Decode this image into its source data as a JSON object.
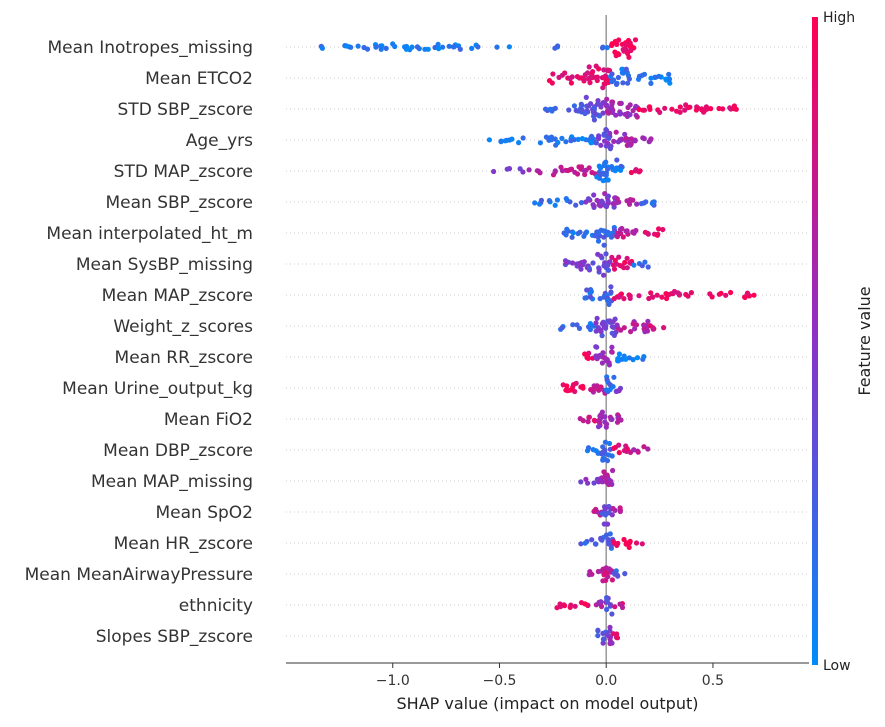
{
  "chart_data": {
    "type": "scatter",
    "subtype": "shap-beeswarm-summary",
    "xlabel": "SHAP value (impact on model output)",
    "xlim": [
      -1.5,
      0.95
    ],
    "x_ticks": [
      -1.0,
      -0.5,
      0.0,
      0.5
    ],
    "x_tick_labels": [
      "−1.0",
      "−0.5",
      "0.0",
      "0.5"
    ],
    "colorbar": {
      "label": "Feature value",
      "high_label": "High",
      "low_label": "Low",
      "high_color": "#ff0052",
      "mid_color": "#8a32c8",
      "low_color": "#008bfa"
    },
    "features": [
      {
        "name": "Mean Inotropes_missing",
        "min": -1.4,
        "max": 0.15,
        "bands": [
          [
            -1.4,
            -1.3,
            0.1,
            0.03
          ],
          [
            -1.3,
            -0.43,
            0.1,
            0.18
          ],
          [
            -0.25,
            -0.15,
            0.1,
            0.06
          ],
          [
            -0.03,
            0.02,
            0.2,
            0.12
          ],
          [
            0.02,
            0.14,
            0.95,
            0.9
          ]
        ]
      },
      {
        "name": "Mean ETCO2",
        "min": -0.27,
        "max": 0.3,
        "bands": [
          [
            -0.27,
            -0.1,
            0.9,
            0.35
          ],
          [
            -0.1,
            0.02,
            0.85,
            1.0
          ],
          [
            0.02,
            0.12,
            0.15,
            0.7
          ],
          [
            0.12,
            0.3,
            0.08,
            0.35
          ]
        ]
      },
      {
        "name": "STD SBP_zscore",
        "min": -0.3,
        "max": 0.63,
        "bands": [
          [
            -0.3,
            -0.12,
            0.25,
            0.2
          ],
          [
            -0.12,
            0.0,
            0.35,
            0.95
          ],
          [
            0.0,
            0.15,
            0.6,
            0.85
          ],
          [
            0.15,
            0.63,
            0.9,
            0.28
          ]
        ]
      },
      {
        "name": "Age_yrs",
        "min": -0.57,
        "max": 0.25,
        "bands": [
          [
            -0.57,
            -0.3,
            0.1,
            0.12
          ],
          [
            -0.3,
            -0.05,
            0.12,
            0.35
          ],
          [
            -0.05,
            0.03,
            0.4,
            0.95
          ],
          [
            0.03,
            0.12,
            0.6,
            0.6
          ],
          [
            0.12,
            0.25,
            0.65,
            0.2
          ]
        ]
      },
      {
        "name": "STD MAP_zscore",
        "min": -0.55,
        "max": 0.17,
        "bands": [
          [
            -0.55,
            -0.35,
            0.5,
            0.08
          ],
          [
            -0.35,
            -0.05,
            0.7,
            0.3
          ],
          [
            -0.05,
            0.08,
            0.15,
            0.95
          ],
          [
            0.08,
            0.17,
            0.85,
            0.12
          ]
        ]
      },
      {
        "name": "Mean SBP_zscore",
        "min": -0.35,
        "max": 0.28,
        "bands": [
          [
            -0.35,
            -0.1,
            0.15,
            0.18
          ],
          [
            -0.1,
            0.05,
            0.5,
            0.75
          ],
          [
            0.05,
            0.15,
            0.6,
            0.3
          ],
          [
            0.15,
            0.28,
            0.2,
            0.15
          ]
        ]
      },
      {
        "name": "Mean interpolated_ht_m",
        "min": -0.2,
        "max": 0.27,
        "bands": [
          [
            -0.2,
            -0.05,
            0.15,
            0.35
          ],
          [
            -0.05,
            0.04,
            0.2,
            1.0
          ],
          [
            0.04,
            0.15,
            0.75,
            0.5
          ],
          [
            0.15,
            0.27,
            0.85,
            0.22
          ]
        ]
      },
      {
        "name": "Mean SysBP_missing",
        "min": -0.2,
        "max": 0.2,
        "bands": [
          [
            -0.2,
            -0.04,
            0.4,
            0.45
          ],
          [
            -0.04,
            0.02,
            0.35,
            1.0
          ],
          [
            0.02,
            0.12,
            0.9,
            0.55
          ],
          [
            0.12,
            0.2,
            0.2,
            0.18
          ]
        ]
      },
      {
        "name": "Mean MAP_zscore",
        "min": -0.1,
        "max": 0.72,
        "bands": [
          [
            -0.1,
            0.0,
            0.2,
            0.45
          ],
          [
            0.0,
            0.03,
            0.2,
            1.0
          ],
          [
            0.03,
            0.35,
            0.9,
            0.3
          ],
          [
            0.35,
            0.72,
            0.95,
            0.15
          ]
        ]
      },
      {
        "name": "Weight_z_scores",
        "min": -0.22,
        "max": 0.28,
        "bands": [
          [
            -0.22,
            -0.05,
            0.15,
            0.22
          ],
          [
            -0.05,
            0.05,
            0.4,
            0.95
          ],
          [
            0.05,
            0.2,
            0.65,
            0.45
          ],
          [
            0.2,
            0.28,
            0.85,
            0.2
          ]
        ]
      },
      {
        "name": "Mean RR_zscore",
        "min": -0.14,
        "max": 0.18,
        "bands": [
          [
            -0.14,
            -0.05,
            0.9,
            0.25
          ],
          [
            -0.05,
            0.03,
            0.55,
            1.0
          ],
          [
            0.03,
            0.18,
            0.08,
            0.3
          ]
        ]
      },
      {
        "name": "Mean Urine_output_kg",
        "min": -0.23,
        "max": 0.08,
        "bands": [
          [
            -0.23,
            -0.08,
            0.95,
            0.3
          ],
          [
            -0.08,
            0.0,
            0.7,
            0.55
          ],
          [
            0.0,
            0.04,
            0.2,
            1.0
          ],
          [
            0.04,
            0.08,
            0.45,
            0.2
          ]
        ]
      },
      {
        "name": "Mean FiO2",
        "min": -0.13,
        "max": 0.09,
        "bands": [
          [
            -0.13,
            -0.04,
            0.8,
            0.22
          ],
          [
            -0.04,
            0.03,
            0.6,
            0.85
          ],
          [
            0.03,
            0.09,
            0.6,
            0.3
          ]
        ]
      },
      {
        "name": "Mean DBP_zscore",
        "min": -0.09,
        "max": 0.22,
        "bands": [
          [
            -0.09,
            -0.02,
            0.15,
            0.3
          ],
          [
            -0.02,
            0.03,
            0.2,
            1.0
          ],
          [
            0.03,
            0.12,
            0.85,
            0.4
          ],
          [
            0.12,
            0.22,
            0.7,
            0.18
          ]
        ]
      },
      {
        "name": "Mean MAP_missing",
        "min": -0.14,
        "max": 0.03,
        "bands": [
          [
            -0.14,
            -0.03,
            0.45,
            0.15
          ],
          [
            -0.03,
            0.03,
            0.6,
            0.9
          ]
        ]
      },
      {
        "name": "Mean SpO2",
        "min": -0.08,
        "max": 0.07,
        "bands": [
          [
            -0.08,
            -0.02,
            0.7,
            0.3
          ],
          [
            -0.02,
            0.03,
            0.35,
            1.0
          ],
          [
            0.03,
            0.07,
            0.7,
            0.3
          ]
        ]
      },
      {
        "name": "Mean HR_zscore",
        "min": -0.13,
        "max": 0.18,
        "bands": [
          [
            -0.13,
            -0.03,
            0.2,
            0.15
          ],
          [
            -0.03,
            0.03,
            0.25,
            0.95
          ],
          [
            0.03,
            0.18,
            0.9,
            0.28
          ]
        ]
      },
      {
        "name": "Mean MeanAirwayPressure",
        "min": -0.09,
        "max": 0.09,
        "bands": [
          [
            -0.09,
            -0.02,
            0.7,
            0.2
          ],
          [
            -0.02,
            0.03,
            0.75,
            0.95
          ],
          [
            0.03,
            0.09,
            0.25,
            0.3
          ]
        ]
      },
      {
        "name": "ethnicity",
        "min": -0.24,
        "max": 0.08,
        "bands": [
          [
            -0.24,
            -0.05,
            0.9,
            0.22
          ],
          [
            -0.05,
            0.0,
            0.6,
            0.35
          ],
          [
            0.0,
            0.03,
            0.3,
            1.0
          ],
          [
            0.03,
            0.08,
            0.75,
            0.2
          ]
        ]
      },
      {
        "name": "Slopes SBP_zscore",
        "min": -0.04,
        "max": 0.06,
        "bands": [
          [
            -0.04,
            0.0,
            0.35,
            0.6
          ],
          [
            0.0,
            0.03,
            0.5,
            0.95
          ],
          [
            0.03,
            0.06,
            0.85,
            0.35
          ]
        ]
      }
    ]
  }
}
